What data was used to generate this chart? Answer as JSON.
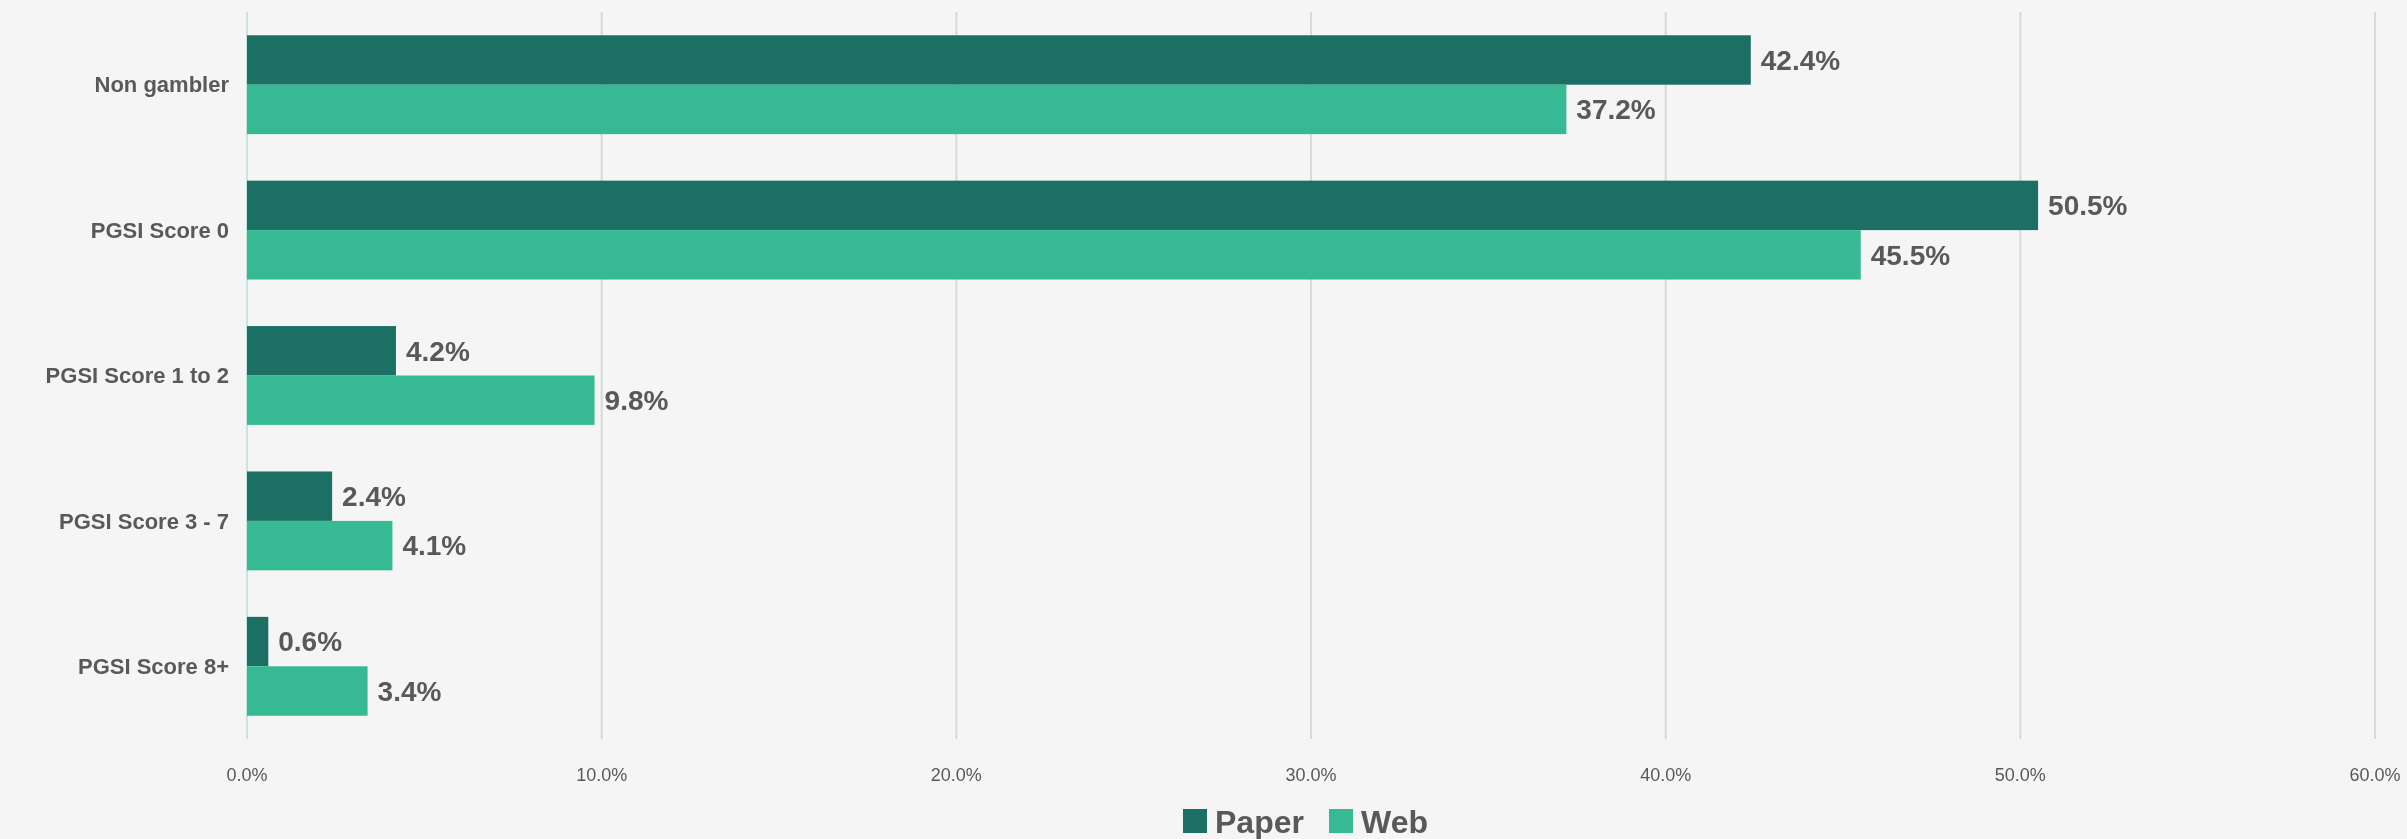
{
  "chart_data": {
    "type": "bar",
    "orientation": "horizontal",
    "categories": [
      "Non gambler",
      "PGSI Score 0",
      "PGSI Score 1 to 2",
      "PGSI Score 3 - 7",
      "PGSI Score 8+"
    ],
    "series": [
      {
        "name": "Paper",
        "color": "#1b6f63",
        "values": [
          42.4,
          50.5,
          4.2,
          2.4,
          0.6
        ],
        "value_labels": [
          "42.4%",
          "50.5%",
          "4.2%",
          "2.4%",
          "0.6%"
        ]
      },
      {
        "name": "Web",
        "color": "#37ba94",
        "values": [
          37.2,
          45.5,
          9.8,
          4.1,
          3.4
        ],
        "value_labels": [
          "37.2%",
          "45.5%",
          "9.8%",
          "4.1%",
          "3.4%"
        ]
      }
    ],
    "xlim": [
      0,
      60
    ],
    "xticks": [
      {
        "value": 0,
        "label": "0.0%"
      },
      {
        "value": 10,
        "label": "10.0%"
      },
      {
        "value": 20,
        "label": "20.0%"
      },
      {
        "value": 30,
        "label": "30.0%"
      },
      {
        "value": 40,
        "label": "40.0%"
      },
      {
        "value": 50,
        "label": "50.0%"
      },
      {
        "value": 60,
        "label": "60.0%"
      }
    ],
    "grid": "x",
    "legend": "bottom"
  }
}
